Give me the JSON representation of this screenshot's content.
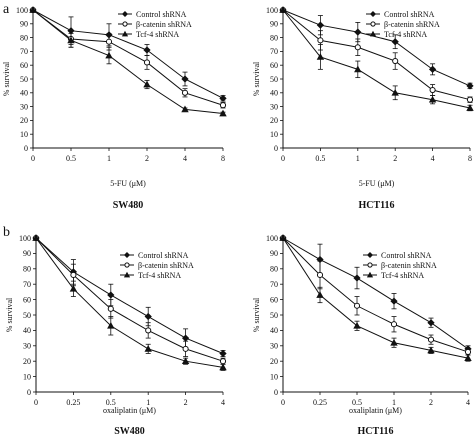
{
  "figure": {
    "panel_labels": [
      "a",
      "b"
    ],
    "colors": {
      "ink": "#111111",
      "background": "#ffffff"
    }
  },
  "chart_data": [
    {
      "type": "line",
      "panel": "a",
      "title": "SW480",
      "xlabel": "5-FU (μM)",
      "ylabel": "% survival",
      "categories": [
        "0",
        "0.5",
        "1",
        "2",
        "4",
        "8"
      ],
      "ylim": [
        0,
        100
      ],
      "yticks": [
        0,
        10,
        20,
        30,
        40,
        50,
        60,
        70,
        80,
        90,
        100
      ],
      "legend_position": "top-right",
      "grid": false,
      "series": [
        {
          "name": "Control shRNA",
          "marker": "diamond",
          "values": [
            100,
            85,
            82,
            71,
            50,
            36
          ],
          "errors": [
            0,
            10,
            8,
            4,
            5,
            2
          ]
        },
        {
          "name": "β-catenin shRNA",
          "marker": "circle",
          "values": [
            100,
            79,
            77,
            62,
            40,
            31
          ],
          "errors": [
            0,
            6,
            6,
            5,
            3,
            2
          ]
        },
        {
          "name": "Tcf-4 shRNA",
          "marker": "triangle",
          "values": [
            100,
            78,
            67,
            46,
            28,
            25
          ],
          "errors": [
            0,
            5,
            6,
            3,
            1,
            1
          ]
        }
      ]
    },
    {
      "type": "line",
      "panel": "a",
      "title": "HCT116",
      "xlabel": "5-FU (μM)",
      "ylabel": "% survival",
      "categories": [
        "0",
        "0.5",
        "1",
        "2",
        "4",
        "8"
      ],
      "ylim": [
        0,
        100
      ],
      "yticks": [
        0,
        10,
        20,
        30,
        40,
        50,
        60,
        70,
        80,
        90,
        100
      ],
      "legend_position": "top-right",
      "grid": false,
      "series": [
        {
          "name": "Control shRNA",
          "marker": "diamond",
          "values": [
            100,
            89,
            84,
            77,
            57,
            45
          ],
          "errors": [
            0,
            7,
            7,
            5,
            4,
            2
          ]
        },
        {
          "name": "β-catenin shRNA",
          "marker": "circle",
          "values": [
            100,
            78,
            73,
            63,
            42,
            35
          ],
          "errors": [
            0,
            7,
            6,
            6,
            4,
            2
          ]
        },
        {
          "name": "Tcf-4 shRNA",
          "marker": "triangle",
          "values": [
            100,
            66,
            57,
            40,
            35,
            29
          ],
          "errors": [
            0,
            9,
            6,
            5,
            3,
            2
          ]
        }
      ]
    },
    {
      "type": "line",
      "panel": "b",
      "title": "SW480",
      "xlabel": "oxaliplatin (μM)",
      "ylabel": "% survival",
      "categories": [
        "0",
        "0.25",
        "0.5",
        "1",
        "2",
        "4"
      ],
      "ylim": [
        0,
        100
      ],
      "yticks": [
        0,
        10,
        20,
        30,
        40,
        50,
        60,
        70,
        80,
        90,
        100
      ],
      "legend_position": "top-right",
      "grid": false,
      "series": [
        {
          "name": "Control shRNA",
          "marker": "diamond",
          "values": [
            100,
            78,
            63,
            49,
            35,
            25
          ],
          "errors": [
            0,
            8,
            7,
            6,
            6,
            2
          ]
        },
        {
          "name": "β-catenin shRNA",
          "marker": "circle",
          "values": [
            100,
            76,
            54,
            40,
            28,
            20
          ],
          "errors": [
            0,
            7,
            6,
            5,
            5,
            2
          ]
        },
        {
          "name": "Tcf-4 shRNA",
          "marker": "triangle",
          "values": [
            100,
            67,
            43,
            28,
            20,
            16
          ],
          "errors": [
            0,
            5,
            6,
            3,
            2,
            2
          ]
        }
      ]
    },
    {
      "type": "line",
      "panel": "b",
      "title": "HCT116",
      "xlabel": "oxaliplatin (μM)",
      "ylabel": "% survival",
      "categories": [
        "0",
        "0.25",
        "0.5",
        "1",
        "2",
        "4"
      ],
      "ylim": [
        0,
        100
      ],
      "yticks": [
        0,
        10,
        20,
        30,
        40,
        50,
        60,
        70,
        80,
        90,
        100
      ],
      "legend_position": "top-right",
      "grid": false,
      "series": [
        {
          "name": "Control shRNA",
          "marker": "diamond",
          "values": [
            100,
            86,
            74,
            59,
            45,
            28
          ],
          "errors": [
            0,
            10,
            7,
            5,
            3,
            2
          ]
        },
        {
          "name": "β-catenin shRNA",
          "marker": "circle",
          "values": [
            100,
            76,
            56,
            44,
            34,
            26
          ],
          "errors": [
            0,
            9,
            6,
            5,
            3,
            2
          ]
        },
        {
          "name": "Tcf-4 shRNA",
          "marker": "triangle",
          "values": [
            100,
            63,
            43,
            32,
            27,
            22
          ],
          "errors": [
            0,
            5,
            3,
            3,
            2,
            2
          ]
        }
      ]
    }
  ]
}
